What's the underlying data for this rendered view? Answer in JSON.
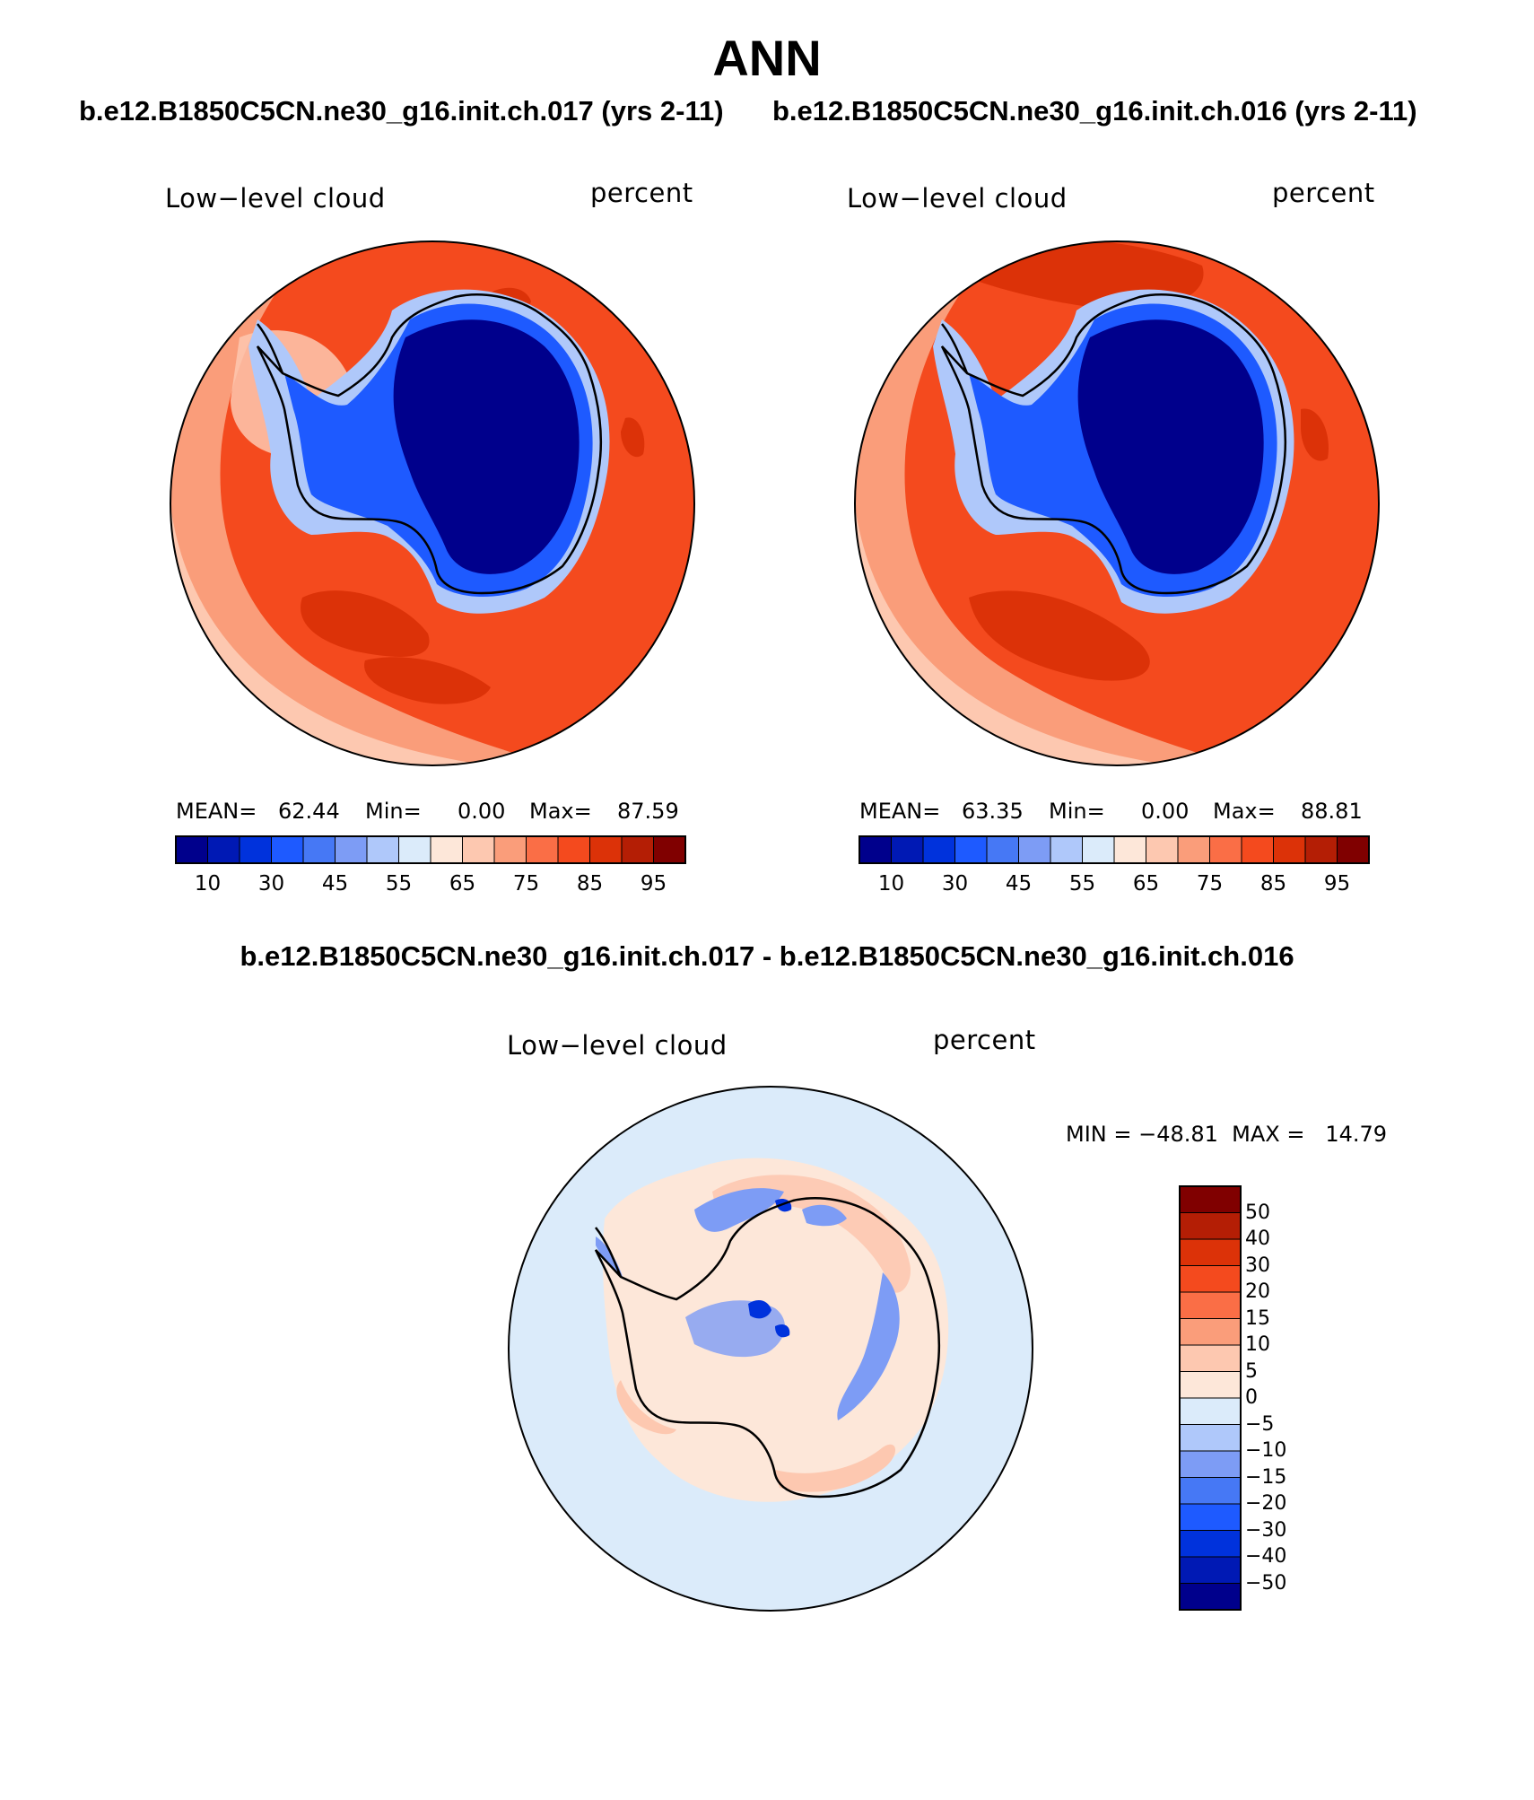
{
  "figure": {
    "season": "ANN",
    "case_a_title": "b.e12.B1850C5CN.ne30_g16.init.ch.017 (yrs 2-11)",
    "case_b_title": "b.e12.B1850C5CN.ne30_g16.init.ch.016 (yrs 2-11)",
    "diff_title": "b.e12.B1850C5CN.ne30_g16.init.ch.017 - b.e12.B1850C5CN.ne30_g16.init.ch.016"
  },
  "panels": {
    "a": {
      "variable": "Low−level cloud",
      "units": "percent",
      "mean_label": "MEAN=",
      "mean": "62.44",
      "min_label": "Min=",
      "min": "0.00",
      "max_label": "Max=",
      "max": "87.59"
    },
    "b": {
      "variable": "Low−level cloud",
      "units": "percent",
      "mean_label": "MEAN=",
      "mean": "63.35",
      "min_label": "Min=",
      "min": "0.00",
      "max_label": "Max=",
      "max": "88.81"
    },
    "diff": {
      "variable": "Low−level cloud",
      "units": "percent",
      "minmax_text": "MIN = −48.81  MAX =   14.79"
    }
  },
  "colorbars": {
    "abs_ticks": [
      "10",
      "30",
      "45",
      "55",
      "65",
      "75",
      "85",
      "95"
    ],
    "abs_colors": [
      "#00008c",
      "#0019b4",
      "#0032dc",
      "#1e5aff",
      "#4678f5",
      "#7d9cf5",
      "#afc8fa",
      "#dbebfa",
      "#fde7d9",
      "#fdc8b0",
      "#fa9d7a",
      "#fa6e46",
      "#f44a1e",
      "#dc3208",
      "#b41e05",
      "#800000"
    ],
    "diff_ticks": [
      "50",
      "40",
      "30",
      "20",
      "15",
      "10",
      "5",
      "0",
      "−5",
      "−10",
      "−15",
      "−20",
      "−30",
      "−40",
      "−50"
    ],
    "diff_colors": [
      "#800000",
      "#b41e05",
      "#dc3208",
      "#f44a1e",
      "#fa6e46",
      "#fa9d7a",
      "#fdc8b0",
      "#fde7d9",
      "#dbebfa",
      "#afc8fa",
      "#7d9cf5",
      "#4678f5",
      "#1e5aff",
      "#0032dc",
      "#0019b4",
      "#00008c"
    ]
  },
  "map_colors": {
    "ocean_outer": "#fdc8b0",
    "ocean_mid": "#fa9d7a",
    "ocean_main": "#f44a1e",
    "ocean_high": "#dc3208",
    "ice_edge": "#afc8fa",
    "ice_mid": "#1e5aff",
    "ice_core": "#00008c",
    "diff_background": "#dbebfa",
    "diff_positive": "#fde7d9",
    "diff_positive_strong": "#fdc8b0",
    "diff_negative": "#7d9cf5",
    "diff_negative_strong": "#0032dc"
  }
}
